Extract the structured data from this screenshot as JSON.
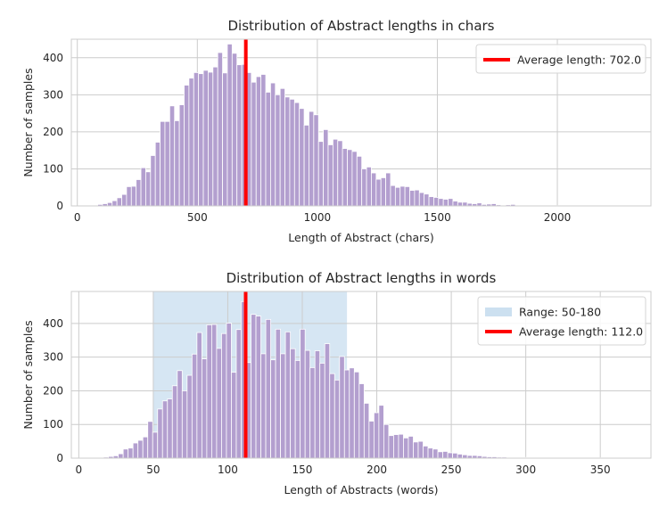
{
  "chart_data": [
    {
      "type": "bar",
      "title": "Distribution of Abstract lengths in chars",
      "xlabel": "Length of Abstract (chars)",
      "ylabel": "Number of samples",
      "xlim": [
        -25,
        2390
      ],
      "ylim": [
        0,
        450
      ],
      "xticks": [
        0,
        500,
        1000,
        1500,
        2000
      ],
      "yticks": [
        0,
        100,
        200,
        300,
        400
      ],
      "grid": true,
      "legend_position": "top-right",
      "bar_color": "#b39fcf",
      "bin_start": 65,
      "bin_width": 20,
      "values": [
        2,
        4,
        6,
        9,
        14,
        22,
        31,
        52,
        53,
        71,
        103,
        92,
        136,
        172,
        228,
        228,
        270,
        230,
        273,
        326,
        345,
        360,
        357,
        366,
        361,
        375,
        414,
        359,
        437,
        412,
        381,
        382,
        360,
        334,
        349,
        355,
        307,
        332,
        300,
        317,
        294,
        288,
        279,
        263,
        218,
        255,
        246,
        174,
        206,
        165,
        180,
        176,
        155,
        152,
        147,
        134,
        100,
        105,
        89,
        72,
        76,
        89,
        55,
        50,
        53,
        52,
        42,
        43,
        36,
        32,
        25,
        23,
        20,
        18,
        20,
        13,
        10,
        10,
        7,
        6,
        8,
        4,
        5,
        6,
        3,
        2,
        3,
        4,
        2,
        2,
        1,
        2,
        1,
        1,
        1,
        2,
        1,
        1,
        1,
        1,
        1,
        1,
        2,
        1,
        1,
        1,
        1,
        1,
        1,
        1,
        1
      ],
      "average_line": {
        "value": 702.0,
        "color": "#ff0000"
      },
      "legend": [
        {
          "label": "Average length: 702.0",
          "kind": "line",
          "color": "#ff0000"
        }
      ]
    },
    {
      "type": "bar",
      "title": "Distribution of Abstract lengths in words",
      "xlabel": "Length of Abstracts (words)",
      "ylabel": "Number of samples",
      "xlim": [
        -5,
        384
      ],
      "ylim": [
        0,
        495
      ],
      "xticks": [
        0,
        50,
        100,
        150,
        200,
        250,
        300,
        350
      ],
      "yticks": [
        0,
        100,
        200,
        300,
        400
      ],
      "grid": true,
      "legend_position": "top-right",
      "bar_color": "#b39fcf",
      "bin_start": 10,
      "bin_width": 3.3,
      "values": [
        1,
        1,
        3,
        5,
        7,
        13,
        27,
        30,
        45,
        53,
        63,
        109,
        77,
        146,
        170,
        176,
        215,
        260,
        200,
        246,
        309,
        373,
        295,
        396,
        397,
        326,
        370,
        401,
        255,
        382,
        465,
        284,
        427,
        422,
        310,
        412,
        292,
        383,
        310,
        375,
        325,
        290,
        383,
        320,
        269,
        319,
        282,
        340,
        251,
        232,
        302,
        262,
        268,
        256,
        221,
        163,
        110,
        135,
        157,
        100,
        67,
        70,
        71,
        60,
        65,
        48,
        50,
        36,
        30,
        27,
        19,
        20,
        16,
        15,
        12,
        10,
        8,
        8,
        7,
        5,
        4,
        4,
        3,
        3,
        2,
        2,
        1,
        2,
        2,
        1,
        1,
        1,
        1,
        1,
        1,
        1,
        1,
        1,
        1,
        1,
        1,
        1,
        1,
        1,
        1,
        1,
        1,
        1,
        1,
        1,
        1,
        1,
        1
      ],
      "shaded_range": {
        "from": 50,
        "to": 180,
        "color": "#cce0f0"
      },
      "average_line": {
        "value": 112.0,
        "color": "#ff0000"
      },
      "legend": [
        {
          "label": "Range: 50-180",
          "kind": "patch",
          "color": "#cce0f0"
        },
        {
          "label": "Average length: 112.0",
          "kind": "line",
          "color": "#ff0000"
        }
      ]
    }
  ]
}
